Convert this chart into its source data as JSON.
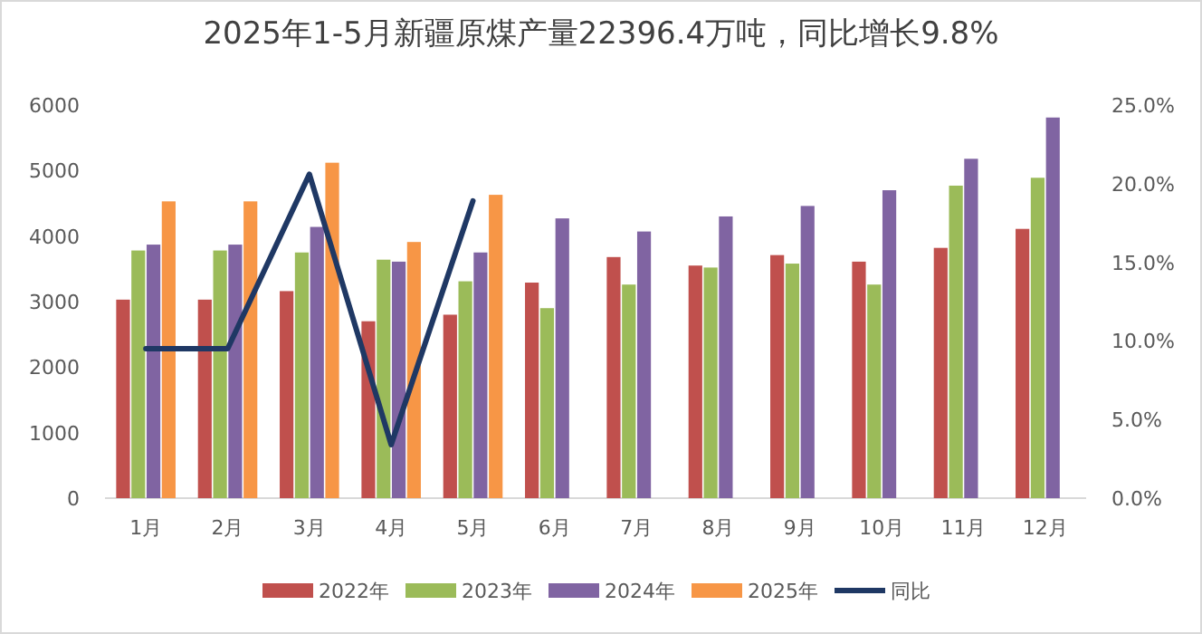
{
  "chart_data": {
    "type": "bar",
    "title": "2025年1-5月新疆原煤产量22396.4万吨，同比增长9.8%",
    "categories": [
      "1月",
      "2月",
      "3月",
      "4月",
      "5月",
      "6月",
      "7月",
      "8月",
      "9月",
      "10月",
      "11月",
      "12月"
    ],
    "series": [
      {
        "name": "2022年",
        "color": "#c0504d",
        "values": [
          3030,
          3030,
          3160,
          2700,
          2800,
          3290,
          3680,
          3550,
          3710,
          3610,
          3820,
          4110
        ]
      },
      {
        "name": "2023年",
        "color": "#9bbb59",
        "values": [
          3780,
          3780,
          3750,
          3640,
          3310,
          2900,
          3260,
          3520,
          3580,
          3260,
          4770,
          4890
        ]
      },
      {
        "name": "2024年",
        "color": "#8064a2",
        "values": [
          3870,
          3870,
          4140,
          3610,
          3750,
          4270,
          4070,
          4300,
          4460,
          4700,
          5180,
          5810
        ]
      },
      {
        "name": "2025年",
        "color": "#f79646",
        "values": [
          4530,
          4530,
          5120,
          3910,
          4630,
          null,
          null,
          null,
          null,
          null,
          null,
          null
        ]
      },
      {
        "name": "同比",
        "type": "line",
        "axis": "y2",
        "color": "#1f3864",
        "values": [
          9.5,
          9.5,
          20.6,
          3.4,
          18.9,
          null,
          null,
          null,
          null,
          null,
          null,
          null
        ]
      }
    ],
    "ylim": [
      0,
      6000
    ],
    "yticks": [
      0,
      1000,
      2000,
      3000,
      4000,
      5000,
      6000
    ],
    "y2lim": [
      0,
      25
    ],
    "y2ticks": [
      {
        "value": 0,
        "label": "0.0%"
      },
      {
        "value": 5,
        "label": "5.0%"
      },
      {
        "value": 10,
        "label": "10.0%"
      },
      {
        "value": 15,
        "label": "15.0%"
      },
      {
        "value": 20,
        "label": "20.0%"
      },
      {
        "value": 25,
        "label": "25.0%"
      }
    ],
    "legend": "bottom",
    "grid": false,
    "marker": "none",
    "line_style": "solid"
  }
}
